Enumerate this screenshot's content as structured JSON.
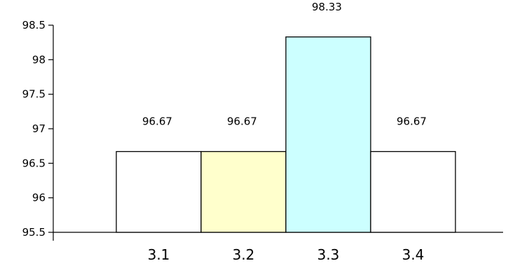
{
  "chart_data": {
    "type": "bar",
    "title": "",
    "xlabel": "",
    "ylabel": "",
    "categories": [
      "3.1",
      "3.2",
      "3.3",
      "3.4"
    ],
    "values": [
      96.67,
      96.67,
      98.33,
      96.67
    ],
    "data_labels": [
      "96.67",
      "96.67",
      "98.33",
      "96.67"
    ],
    "bar_colors": [
      "#ffffff",
      "#ffffcc",
      "#ccffff",
      "#ffffff"
    ],
    "ylim": [
      95.5,
      98.5
    ],
    "yticks": [
      95.5,
      96,
      96.5,
      97,
      97.5,
      98,
      98.5
    ],
    "ytick_labels": [
      "95.5",
      "96",
      "96.5",
      "97",
      "97.5",
      "98",
      "98.5"
    ],
    "grid": false,
    "legend": "none"
  }
}
